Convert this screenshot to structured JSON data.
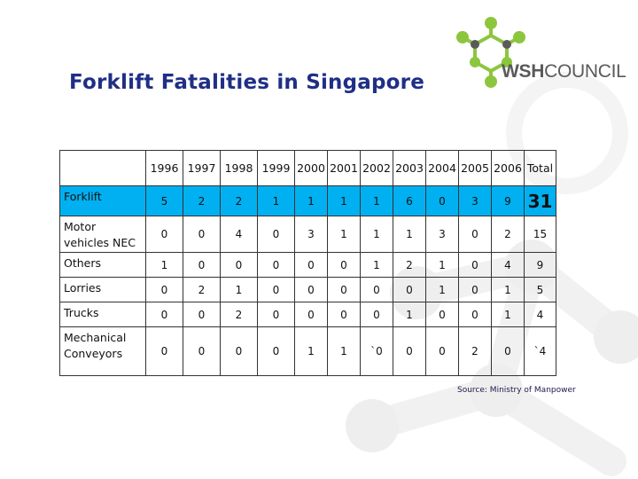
{
  "slide": {
    "title": "Forklift Fatalities in Singapore"
  },
  "logo": {
    "wsh": "WSH",
    "council": "COUNCIL"
  },
  "table": {
    "headers": [
      "",
      "1996",
      "1997",
      "1998",
      "1999",
      "2000",
      "2001",
      "2002",
      "2003",
      "2004",
      "2005",
      "2006",
      "Total"
    ],
    "rows": [
      {
        "label": "Forklift",
        "values": [
          "5",
          "2",
          "2",
          "1",
          "1",
          "1",
          "1",
          "6",
          "0",
          "3",
          "9"
        ],
        "total": "31"
      },
      {
        "label": "Motor vehicles NEC",
        "values": [
          "0",
          "0",
          "4",
          "0",
          "3",
          "1",
          "1",
          "1",
          "3",
          "0",
          "2"
        ],
        "total": "15"
      },
      {
        "label": "Others",
        "values": [
          "1",
          "0",
          "0",
          "0",
          "0",
          "0",
          "1",
          "2",
          "1",
          "0",
          "4"
        ],
        "total": "9"
      },
      {
        "label": "Lorries",
        "values": [
          "0",
          "2",
          "1",
          "0",
          "0",
          "0",
          "0",
          "0",
          "1",
          "0",
          "1"
        ],
        "total": "5"
      },
      {
        "label": "Trucks",
        "values": [
          "0",
          "0",
          "2",
          "0",
          "0",
          "0",
          "0",
          "1",
          "0",
          "0",
          "1"
        ],
        "total": "4"
      },
      {
        "label": "Mechanical Conveyors",
        "values": [
          "0",
          "0",
          "0",
          "0",
          "1",
          "1",
          "`0",
          "0",
          "0",
          "2",
          "0"
        ],
        "total": "`4"
      }
    ]
  },
  "source": "Source: Ministry of Manpower",
  "colors": {
    "title": "#1f2f86",
    "highlight_row": "#00b0f0",
    "highlight_total": "#ff0000",
    "logo_green": "#8cc63f",
    "logo_gray": "#5a5a5a"
  }
}
